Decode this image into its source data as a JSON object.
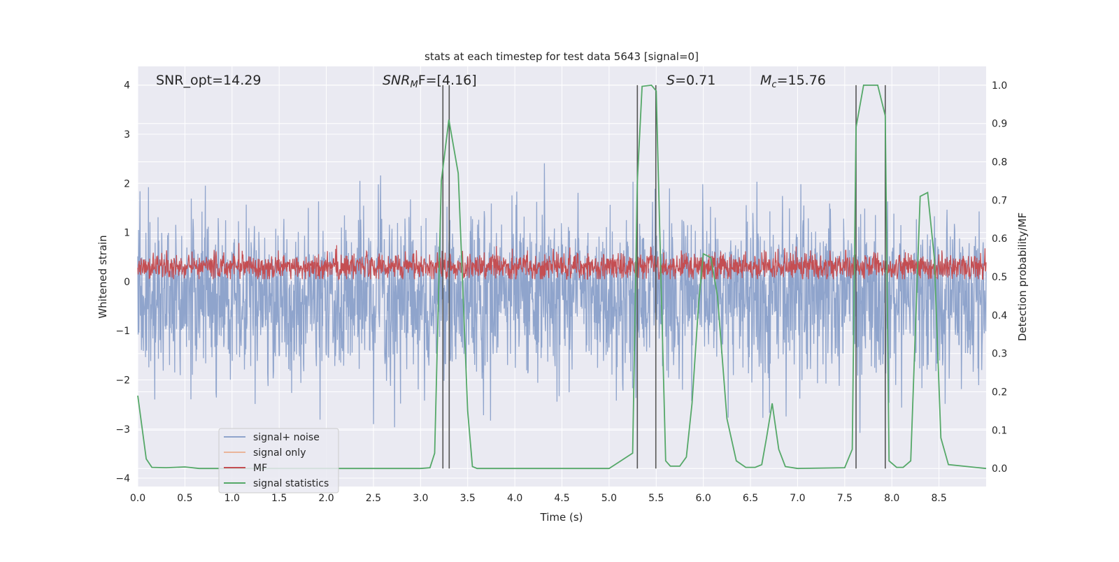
{
  "chart_data": {
    "type": "line",
    "title": "stats at each timestep for test data 5643 [signal=0]",
    "xlabel": "Time (s)",
    "ylabel": "Whitened strain",
    "ylabel_right": "Detection probability/MF",
    "xlim": [
      0,
      9.0
    ],
    "ylim": [
      -4.17,
      4.38
    ],
    "ylim_right": [
      -0.047,
      1.049
    ],
    "xticks": [
      "0.0",
      "0.5",
      "1.0",
      "1.5",
      "2.0",
      "2.5",
      "3.0",
      "3.5",
      "4.0",
      "4.5",
      "5.0",
      "5.5",
      "6.0",
      "6.5",
      "7.0",
      "7.5",
      "8.0",
      "8.5"
    ],
    "yticks": [
      "4",
      "3",
      "2",
      "1",
      "0",
      "−1",
      "−2",
      "−3",
      "−4"
    ],
    "yticks_right": [
      "1.0",
      "0.9",
      "0.8",
      "0.7",
      "0.6",
      "0.5",
      "0.4",
      "0.3",
      "0.2",
      "0.1",
      "0.0"
    ],
    "grid": true,
    "annotations": {
      "snr_opt": "SNR_opt=14.29",
      "snr_mf_label": "SNR",
      "snr_mf_sub": "M",
      "snr_mf_rest": "F=[4.16]",
      "s_label": "S",
      "s_rest": "=0.71",
      "mc_label": "M",
      "mc_sub": "c",
      "mc_rest": "=15.76"
    },
    "legend": {
      "position": "lower-left",
      "entries": [
        "signal+ noise",
        "signal only",
        "MF",
        "signal statistics"
      ]
    },
    "colors": {
      "noise": "#8fa4cc",
      "signal_only": "#eab59a",
      "mf": "#c44e52",
      "stat": "#55a868",
      "vline": "#555555",
      "bg": "#eaeaf2"
    },
    "series": [
      {
        "name": "signal+ noise",
        "axis": "left",
        "generated": {
          "n": 2300,
          "mean": -0.3,
          "std": 0.85,
          "seed": 5643
        }
      },
      {
        "name": "signal only",
        "axis": "left",
        "values": []
      },
      {
        "name": "MF",
        "axis": "left",
        "generated": {
          "n": 2300,
          "mean": 0.3,
          "std": 0.14,
          "seed": 77
        }
      },
      {
        "name": "signal statistics",
        "axis": "right",
        "x": [
          0,
          0.09,
          0.15,
          0.3,
          0.5,
          0.65,
          1,
          2,
          3,
          3.1,
          3.15,
          3.22,
          3.3,
          3.4,
          3.5,
          3.55,
          3.6,
          4,
          5,
          5.25,
          5.3,
          5.35,
          5.45,
          5.5,
          5.55,
          5.6,
          5.65,
          5.75,
          5.82,
          5.88,
          5.95,
          6.0,
          6.08,
          6.15,
          6.25,
          6.35,
          6.45,
          6.55,
          6.62,
          6.67,
          6.73,
          6.8,
          6.87,
          7,
          7.5,
          7.58,
          7.62,
          7.7,
          7.85,
          7.93,
          7.97,
          8.05,
          8.12,
          8.2,
          8.3,
          8.38,
          8.45,
          8.52,
          8.6,
          9.0
        ],
        "y": [
          0.19,
          0.025,
          0.003,
          0.002,
          0.004,
          0,
          0,
          0,
          0,
          0.002,
          0.04,
          0.75,
          0.91,
          0.77,
          0.15,
          0.005,
          0,
          0,
          0,
          0.04,
          0.75,
          0.997,
          1.0,
          0.985,
          0.5,
          0.02,
          0.006,
          0.006,
          0.03,
          0.17,
          0.43,
          0.56,
          0.55,
          0.45,
          0.13,
          0.02,
          0.003,
          0.003,
          0.01,
          0.08,
          0.17,
          0.05,
          0.005,
          0,
          0.002,
          0.05,
          0.89,
          1.0,
          1.0,
          0.92,
          0.02,
          0.003,
          0.003,
          0.02,
          0.71,
          0.72,
          0.55,
          0.08,
          0.01,
          0
        ]
      }
    ],
    "vlines_x": [
      3.237,
      3.304,
      5.3,
      5.496,
      7.62,
      7.93
    ],
    "vlines_range_right": [
      0,
      1
    ]
  }
}
